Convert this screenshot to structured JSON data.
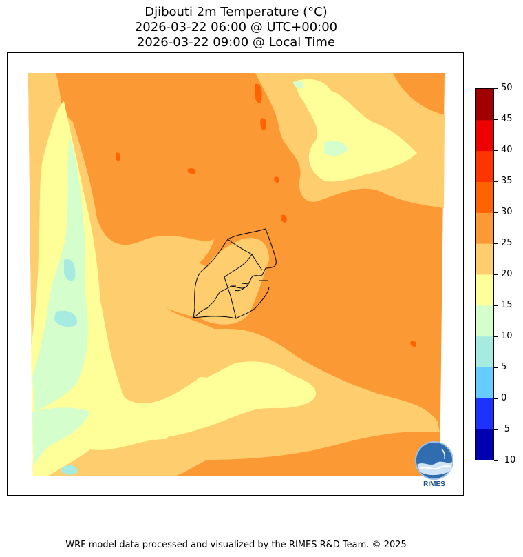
{
  "title": {
    "line1": "Djibouti 2m Temperature (°C)",
    "line2": "2026-03-22 06:00 @ UTC+00:00",
    "line3": "2026-03-22 09:00 @ Local Time"
  },
  "colorbar": {
    "levels": [
      "-10",
      "-5",
      "0",
      "5",
      "10",
      "15",
      "20",
      "25",
      "30",
      "35",
      "40",
      "45",
      "50"
    ],
    "colors": [
      "#0000b0",
      "#1e32ff",
      "#66ccff",
      "#a6ebe0",
      "#d4ffcc",
      "#ffff99",
      "#fdcd6e",
      "#fb9934",
      "#ff6200",
      "#ff3500",
      "#ec0000",
      "#a00000"
    ]
  },
  "map": {
    "background_color": "#fb9934",
    "legend_colors": {
      "20-25": "#fdcd6e",
      "15-20": "#ffff99",
      "10-15": "#d4ffcc",
      "5-10": "#a6ebe0",
      "30-35": "#ff6200"
    }
  },
  "logo": {
    "text": "RIMES"
  },
  "footer": "WRF model data processed and visualized by the RIMES R&D Team. © 2025"
}
